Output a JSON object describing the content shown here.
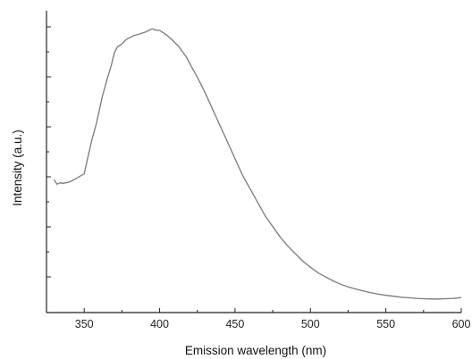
{
  "chart_data": {
    "type": "line",
    "title": "",
    "xlabel": "Emission wavelength (nm)",
    "ylabel": "Intensity (a.u.)",
    "xlim": [
      325,
      600
    ],
    "ylim": [
      0,
      1.0
    ],
    "x_ticks": [
      350,
      400,
      450,
      500,
      550,
      600
    ],
    "x_tick_labels": [
      "350",
      "400",
      "450",
      "500",
      "550",
      "600"
    ],
    "y_tick_count": 6,
    "y_tick_labels_visible": false,
    "grid": false,
    "legend": "none",
    "line_color": "#7a7a7a",
    "series": [
      {
        "x": [
          330,
          332,
          334,
          336,
          340,
          345,
          350,
          352,
          355,
          358,
          360,
          362,
          365,
          368,
          370,
          372,
          375,
          378,
          380,
          383,
          385,
          388,
          390,
          393,
          395,
          398,
          400,
          403,
          405,
          408,
          410,
          413,
          415,
          418,
          420,
          425,
          430,
          435,
          440,
          445,
          450,
          455,
          460,
          465,
          470,
          475,
          480,
          485,
          490,
          495,
          500,
          505,
          510,
          515,
          520,
          525,
          530,
          535,
          540,
          545,
          550,
          555,
          560,
          565,
          570,
          575,
          580,
          585,
          590,
          595,
          600
        ],
        "y": [
          0.44,
          0.425,
          0.43,
          0.428,
          0.432,
          0.445,
          0.46,
          0.505,
          0.57,
          0.625,
          0.67,
          0.715,
          0.77,
          0.82,
          0.86,
          0.88,
          0.89,
          0.905,
          0.91,
          0.918,
          0.92,
          0.925,
          0.928,
          0.935,
          0.94,
          0.935,
          0.935,
          0.925,
          0.918,
          0.905,
          0.895,
          0.88,
          0.865,
          0.845,
          0.825,
          0.78,
          0.73,
          0.675,
          0.62,
          0.565,
          0.51,
          0.455,
          0.41,
          0.365,
          0.32,
          0.285,
          0.25,
          0.22,
          0.195,
          0.17,
          0.15,
          0.132,
          0.118,
          0.105,
          0.094,
          0.085,
          0.078,
          0.072,
          0.066,
          0.061,
          0.057,
          0.054,
          0.051,
          0.049,
          0.047,
          0.046,
          0.045,
          0.045,
          0.046,
          0.047,
          0.05
        ]
      }
    ]
  }
}
